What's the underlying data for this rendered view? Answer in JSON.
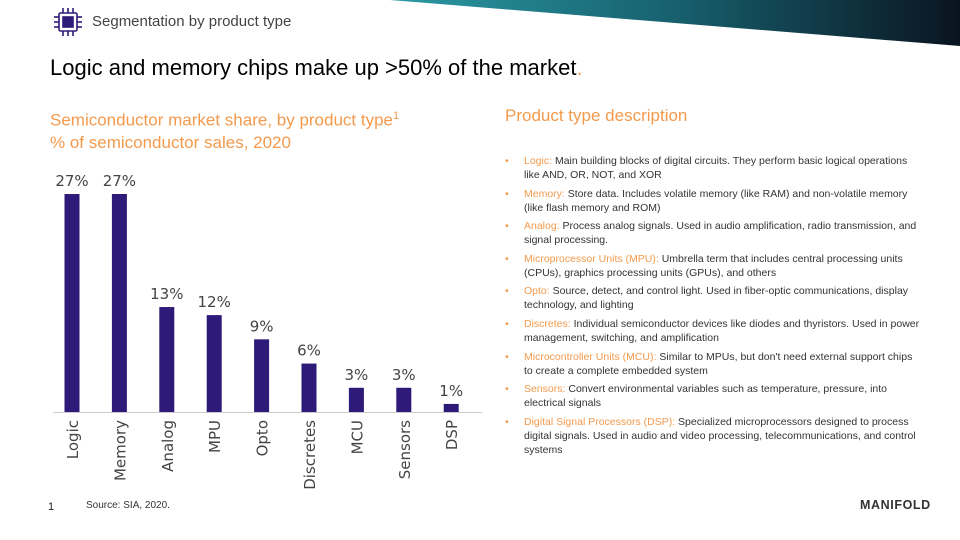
{
  "header": {
    "section_label": "Segmentation by product type",
    "icon": "chip-icon"
  },
  "headline": {
    "text": "Logic and memory chips make up >50% of the market",
    "period": "."
  },
  "chart_title": {
    "line1": "Semiconductor market share, by product type",
    "footnote_mark": "1",
    "line2": "% of semiconductor sales, 2020"
  },
  "chart_data": {
    "type": "bar",
    "categories": [
      "Logic",
      "Memory",
      "Analog",
      "MPU",
      "Opto",
      "Discretes",
      "MCU",
      "Sensors",
      "DSP"
    ],
    "values": [
      27,
      27,
      13,
      12,
      9,
      6,
      3,
      3,
      1
    ],
    "value_labels": [
      "27%",
      "27%",
      "13%",
      "12%",
      "9%",
      "6%",
      "3%",
      "3%",
      "1%"
    ],
    "title": "Semiconductor market share, by product type",
    "ylabel": "% of semiconductor sales, 2020",
    "ylim": [
      0,
      27
    ],
    "grid": false,
    "bar_color": "#2e1a78",
    "axis_color": "#cccccc"
  },
  "description": {
    "title": "Product type description",
    "items": [
      {
        "term": "Logic:",
        "text": " Main building blocks of digital circuits. They perform basic logical operations like AND, OR, NOT, and XOR"
      },
      {
        "term": "Memory:",
        "text": " Store data. Includes volatile memory (like RAM) and non-volatile memory (like flash memory and ROM)"
      },
      {
        "term": "Analog:",
        "text": " Process analog signals. Used in audio amplification, radio transmission, and signal processing."
      },
      {
        "term": "Microprocessor Units (MPU):",
        "text": " Umbrella term that includes central processing units (CPUs), graphics processing units (GPUs), and others"
      },
      {
        "term": "Opto:",
        "text": " Source, detect, and control light. Used in fiber-optic communications, display technology, and lighting"
      },
      {
        "term": "Discretes:",
        "text": " Individual semiconductor devices like diodes and thyristors. Used in power management, switching, and amplification"
      },
      {
        "term": "Microcontroller Units (MCU):",
        "text": " Similar to MPUs, but don't need external support chips to create a complete embedded system"
      },
      {
        "term": "Sensors:",
        "text": " Convert environmental variables such as temperature, pressure, into electrical signals"
      },
      {
        "term": "Digital Signal Processors (DSP):",
        "text": " Specialized microprocessors designed to process digital signals. Used in audio and video processing, telecommunications, and control systems"
      }
    ]
  },
  "footer": {
    "page_number": "1",
    "source": "Source: SIA, 2020.",
    "brand": "MANIFOLD"
  },
  "colors": {
    "accent": "#f39a4c",
    "bar": "#2e1a78",
    "banner_dark": "#0b1a2a",
    "banner_teal": "#1a7a86"
  }
}
